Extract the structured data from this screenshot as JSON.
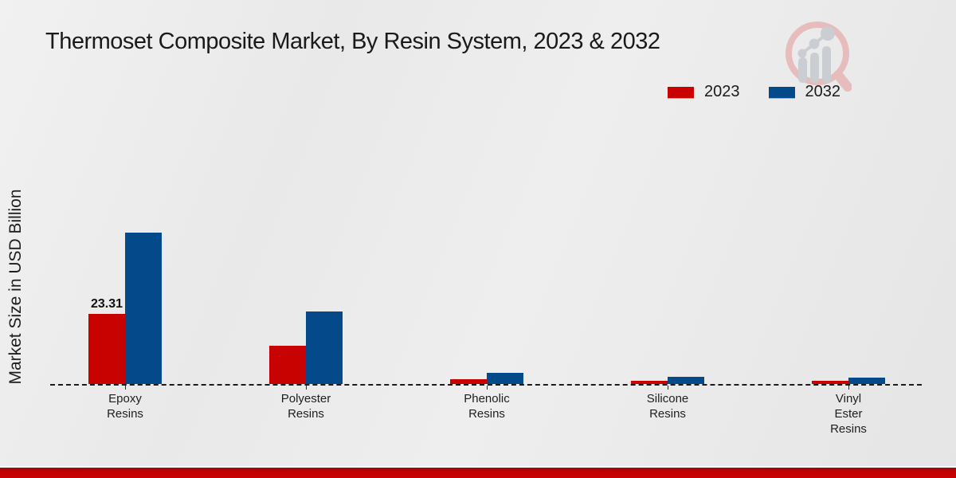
{
  "title": "Thermoset Composite Market, By Resin System, 2023 & 2032",
  "y_axis_label": "Market Size in USD Billion",
  "legend": {
    "position": "top-right",
    "items": [
      {
        "label": "2023",
        "color": "#c80101"
      },
      {
        "label": "2032",
        "color": "#04498a"
      }
    ]
  },
  "logo": {
    "name": "market-research-magnifier-logo"
  },
  "colors": {
    "series_2023": "#c80101",
    "series_2032": "#04498a",
    "background": "#eaeaea",
    "baseline": "#1c1c1c",
    "footer_stripe": "#c40202"
  },
  "chart_data": {
    "type": "bar",
    "title": "Thermoset Composite Market, By Resin System, 2023 & 2032",
    "xlabel": "",
    "ylabel": "Market Size in USD Billion",
    "grid": false,
    "baseline_style": "dashed",
    "legend_position": "top-right",
    "categories": [
      "Epoxy Resins",
      "Polyester Resins",
      "Phenolic Resins",
      "Silicone Resins",
      "Vinyl Ester Resins"
    ],
    "tick_labels": [
      "Epoxy\nResins",
      "Polyester\nResins",
      "Phenolic\nResins",
      "Silicone\nResins",
      "Vinyl\nEster\nResins"
    ],
    "series": [
      {
        "name": "2023",
        "color": "#c80101",
        "values": [
          23.31,
          12.7,
          1.5,
          0.95,
          1.0
        ],
        "data_labels": [
          "23.31",
          null,
          null,
          null,
          null
        ]
      },
      {
        "name": "2032",
        "color": "#04498a",
        "values": [
          50.2,
          24.1,
          3.7,
          2.4,
          2.1
        ],
        "data_labels": [
          null,
          null,
          null,
          null,
          null
        ]
      }
    ],
    "ylim": [
      0,
      55
    ],
    "annotated_value": "23.31"
  }
}
